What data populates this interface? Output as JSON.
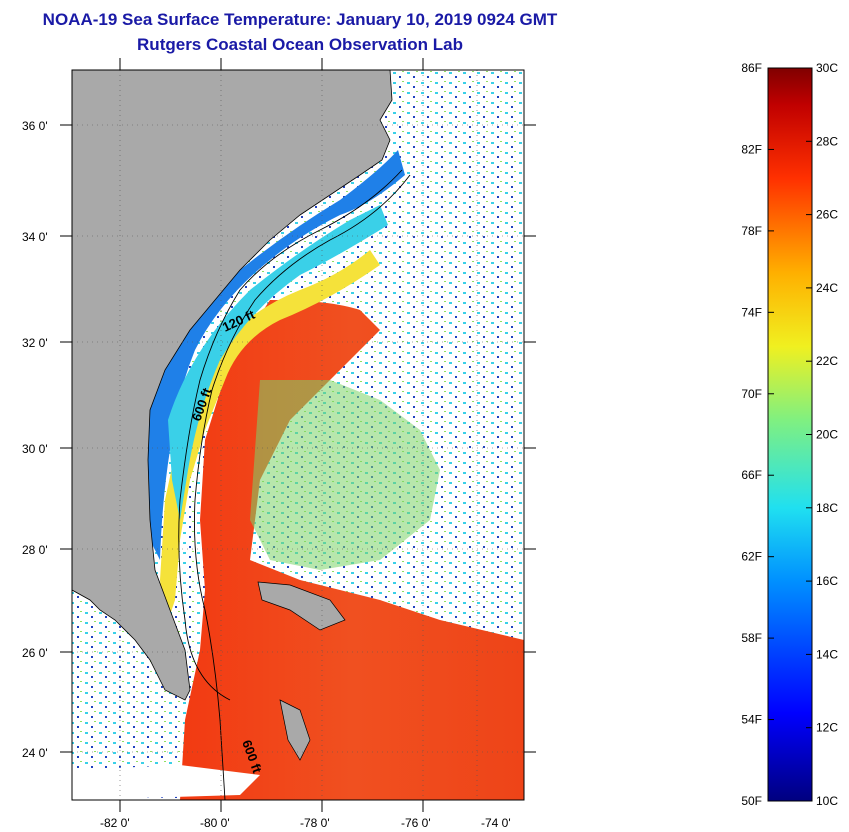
{
  "title": {
    "line1": "NOAA-19 Sea Surface Temperature:  January 10, 2019 0924 GMT",
    "line2": "Rutgers Coastal Ocean Observation Lab"
  },
  "map": {
    "lon_labels": [
      "-82 0'",
      "-80 0'",
      "-78 0'",
      "-76 0'",
      "-74 0'"
    ],
    "lat_labels": [
      "36 0'",
      "34 0'",
      "32 0'",
      "30 0'",
      "28 0'",
      "26 0'",
      "24 0'"
    ],
    "contour_labels": [
      "120 ft",
      "600 ft",
      "600 ft"
    ],
    "colors": {
      "land": "#a9a9a9",
      "cold": "#1f6fe0",
      "mid": "#3ad0e8",
      "warm": "#f5e23a",
      "hot": "#f04a18"
    }
  },
  "colorbar": {
    "fahrenheit_labels": [
      "86F",
      "82F",
      "78F",
      "74F",
      "70F",
      "66F",
      "62F",
      "58F",
      "54F",
      "50F"
    ],
    "celsius_labels": [
      "30C",
      "28C",
      "26C",
      "24C",
      "22C",
      "20C",
      "18C",
      "16C",
      "14C",
      "12C",
      "10C"
    ],
    "range_f": [
      50,
      86
    ],
    "range_c": [
      10,
      30
    ]
  }
}
